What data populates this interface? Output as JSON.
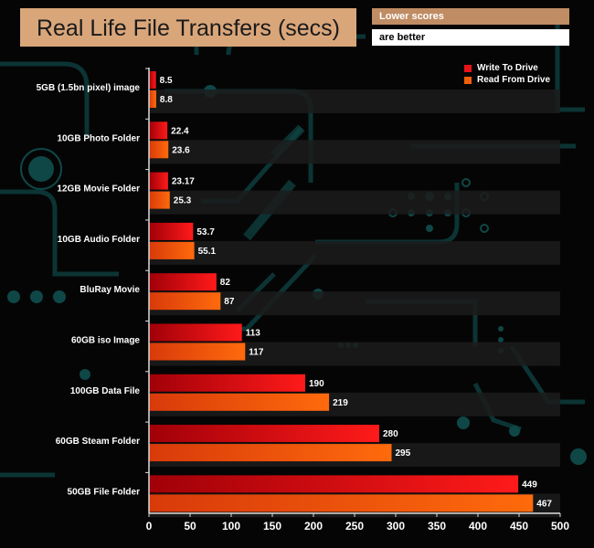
{
  "header": {
    "title": "Real Life File Transfers (secs)",
    "note_line1": "Lower scores",
    "note_line2": "are better"
  },
  "colors": {
    "write": "#e8141a",
    "read": "#f0600a",
    "title_bg": "#d9a67a",
    "note_bg": "#bf8c64",
    "band": "#1c1c1c"
  },
  "chart_data": {
    "type": "bar",
    "orientation": "horizontal",
    "title": "Real Life File Transfers (secs)",
    "categories": [
      "5GB (1.5bn pixel) image",
      "10GB Photo Folder",
      "12GB Movie Folder",
      "10GB Audio Folder",
      "BluRay Movie",
      "60GB iso Image",
      "100GB Data File",
      "60GB Steam Folder",
      "50GB File Folder"
    ],
    "series": [
      {
        "name": "Write To  Drive",
        "values": [
          8.5,
          22.4,
          23.17,
          53.7,
          82,
          113,
          190,
          280,
          449
        ],
        "labels": [
          "8.5",
          "22.4",
          "23.17",
          "53.7",
          "82",
          "113",
          "190",
          "280",
          "449"
        ]
      },
      {
        "name": "Read From  Drive",
        "values": [
          8.8,
          23.6,
          25.3,
          55.1,
          87,
          117,
          219,
          295,
          467
        ],
        "labels": [
          "8.8",
          "23.6",
          "25.3",
          "55.1",
          "87",
          "117",
          "219",
          "295",
          "467"
        ]
      }
    ],
    "xlim": [
      0,
      500
    ],
    "xticks": [
      "0",
      "50",
      "100",
      "150",
      "200",
      "250",
      "300",
      "350",
      "400",
      "450",
      "500"
    ],
    "legend_position": "top-right",
    "grid": false
  }
}
